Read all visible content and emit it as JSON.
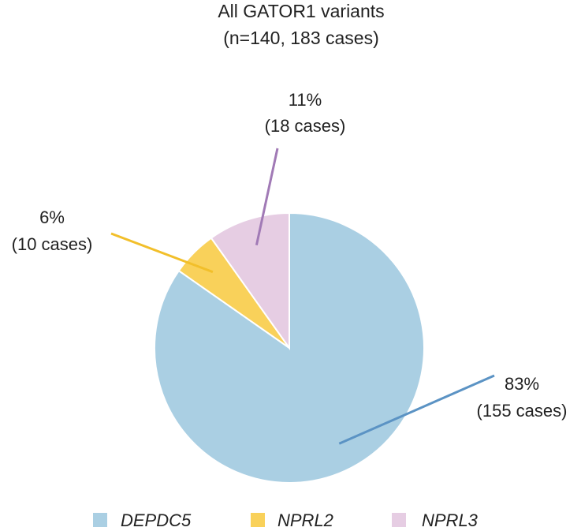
{
  "chart_data": {
    "type": "pie",
    "title": "All GATOR1 variants",
    "subtitle": "(n=140, 183 cases)",
    "legend_position": "bottom",
    "slices": [
      {
        "name": "DEPDC5",
        "value": 155,
        "percent_label": "83%",
        "cases_label": "(155 cases)",
        "color": "#aacfe3",
        "leader_color": "#5b93c4"
      },
      {
        "name": "NPRL2",
        "value": 10,
        "percent_label": "6%",
        "cases_label": "(10 cases)",
        "color": "#f9d15a",
        "leader_color": "#f2bf2a"
      },
      {
        "name": "NPRL3",
        "value": 18,
        "percent_label": "11%",
        "cases_label": "(18 cases)",
        "color": "#e6cde3",
        "leader_color": "#a17ab6"
      }
    ]
  }
}
